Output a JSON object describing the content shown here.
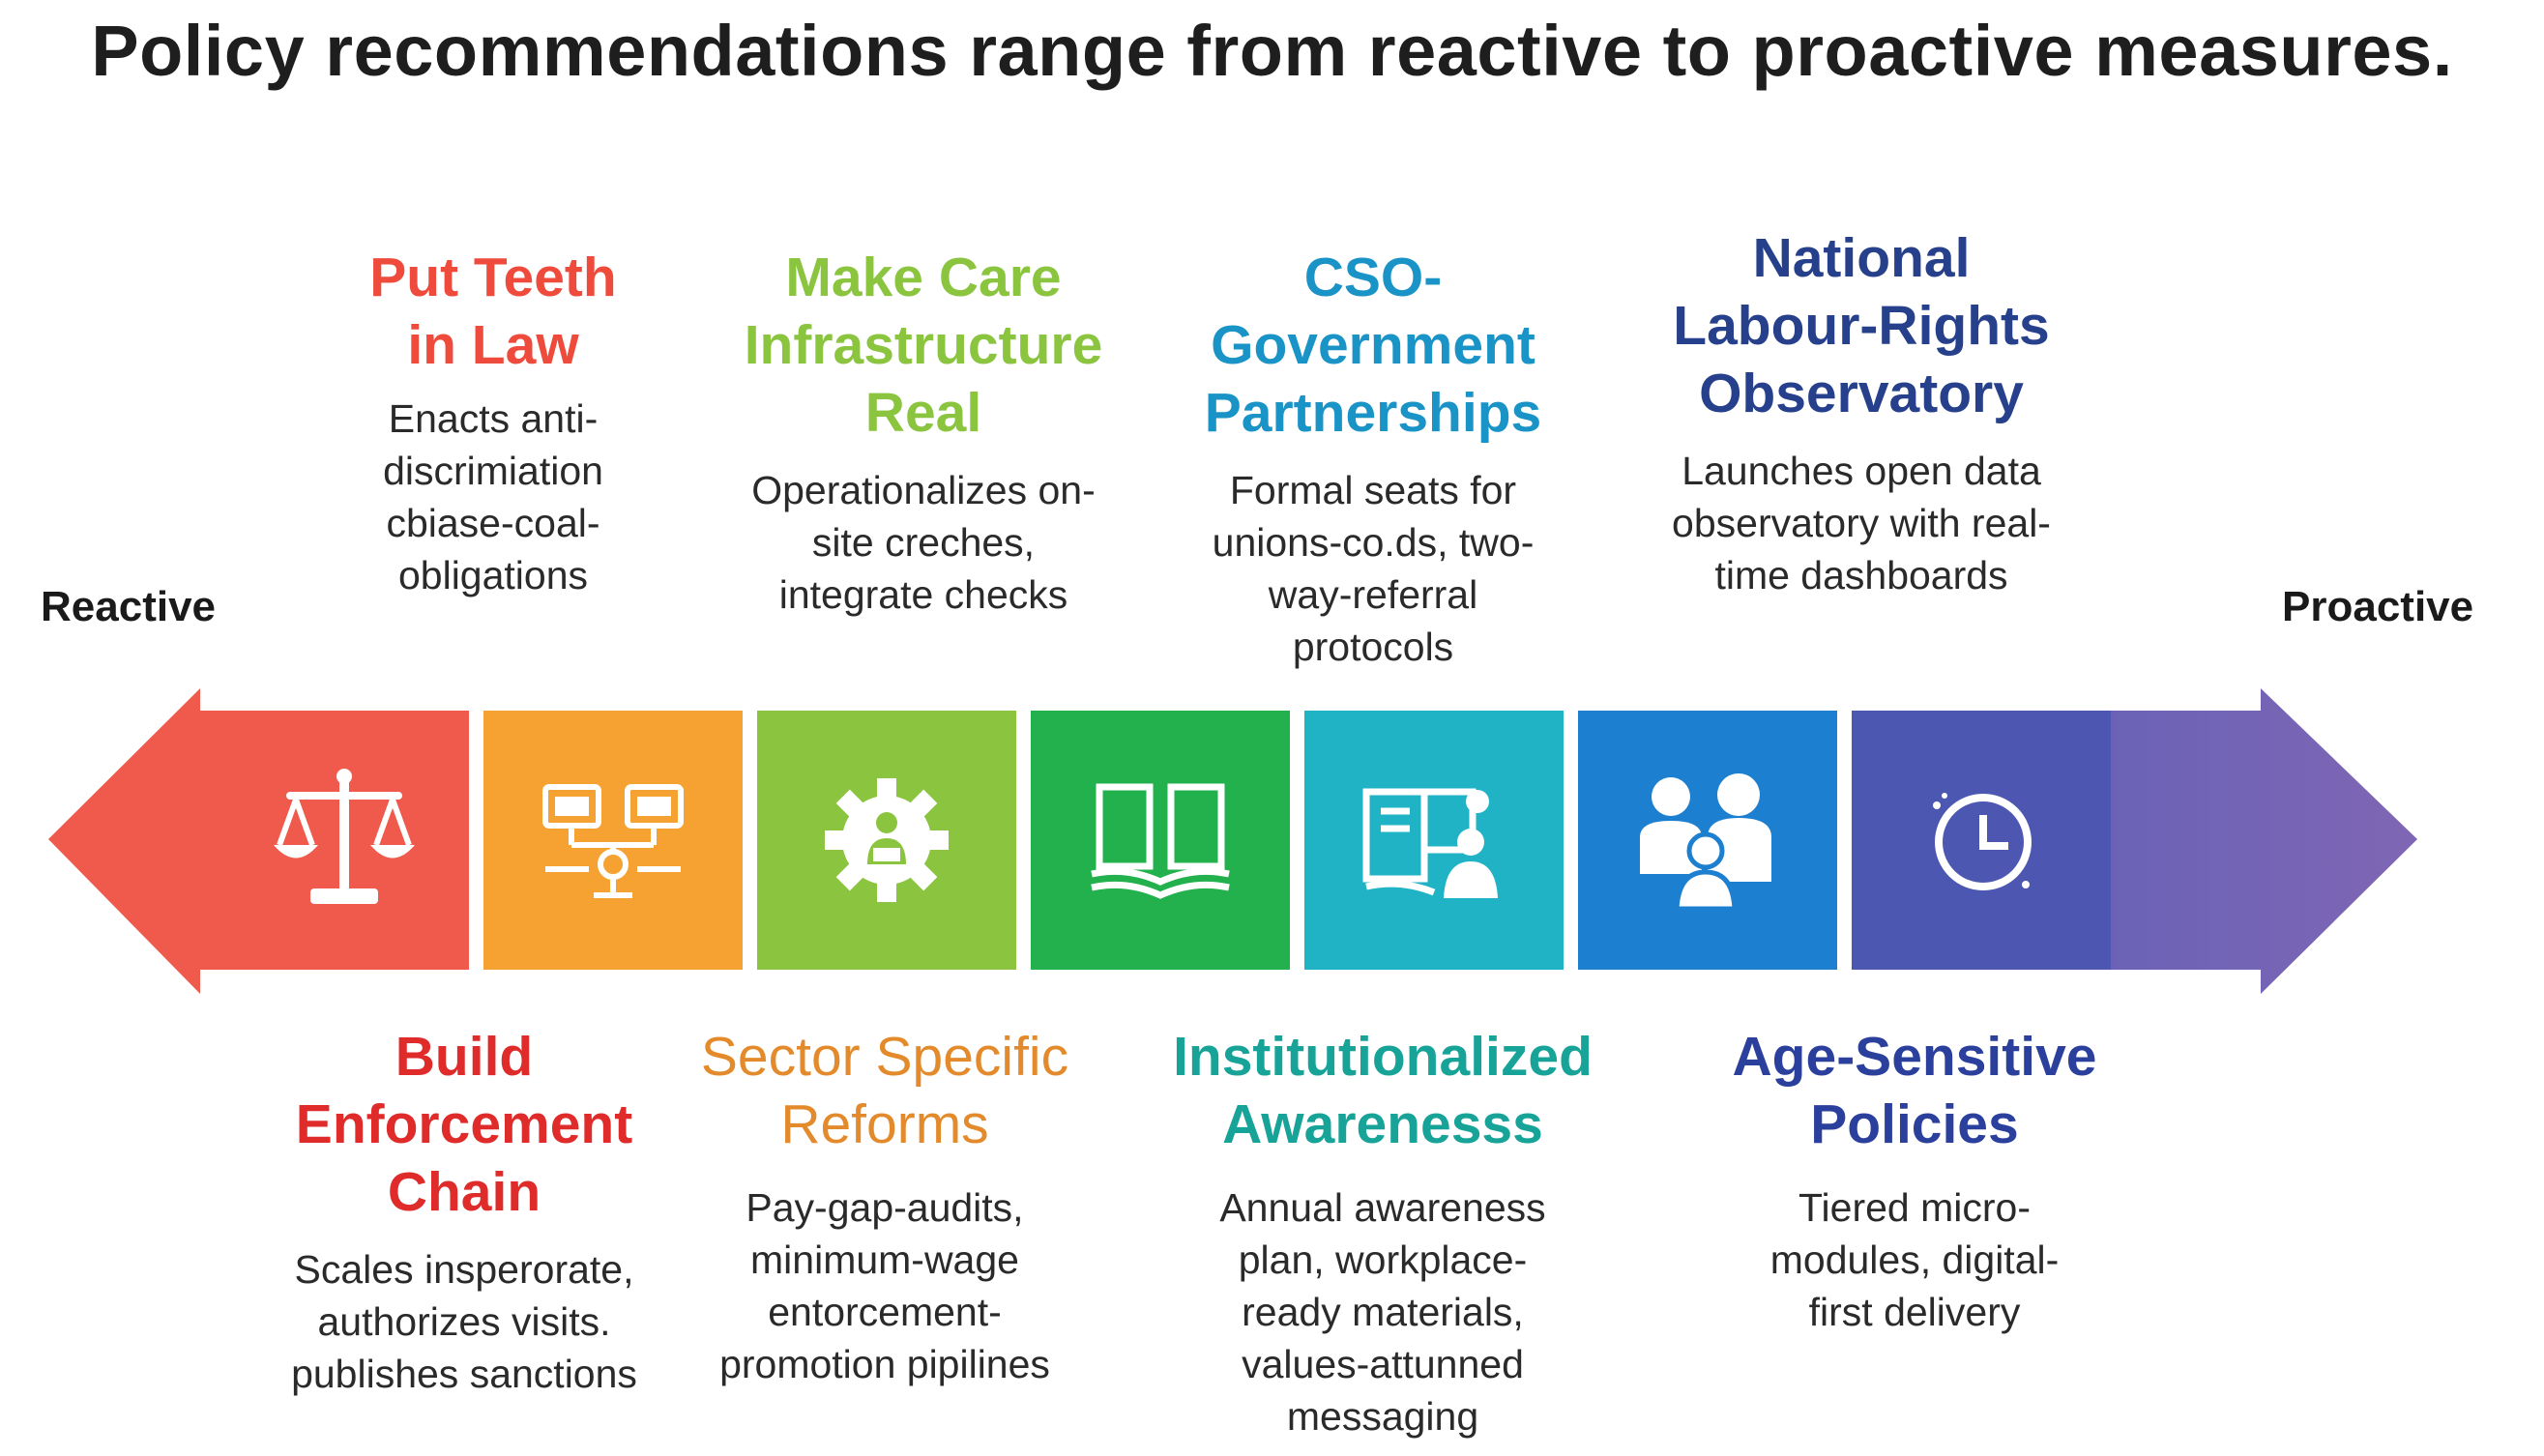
{
  "title": "Policy recommendations range from reactive to proactive measures.",
  "left_label": "Reactive",
  "right_label": "Proactive",
  "colors": {
    "red": "#ef5a4c",
    "orange": "#f5a233",
    "lime": "#8bc53f",
    "green": "#22b14c",
    "teal": "#1fb3c5",
    "blue": "#1c7fcf",
    "indigo": "#4a57b0",
    "purple": "#7466b4"
  },
  "top_items": [
    {
      "heading": "Put Teeth in Law",
      "description": "Enacts anti-discrimiation cbiase-coal-obligations",
      "color": "#ef4b3c"
    },
    {
      "heading": "Make Care Infrastructure Real",
      "description": "Operationalizes on-site creches, integrate checks",
      "color": "#8bc53f"
    },
    {
      "heading": "CSO-Government Partnerships",
      "description": "Formal seats for unions-co.ds, two-way-referral protocols",
      "color": "#1a93c7"
    },
    {
      "heading": "National Labour-Rights Observatory",
      "description": "Launches open data observatory with real-time dashboards",
      "color": "#27408b"
    }
  ],
  "bottom_items": [
    {
      "heading": "Build Enforcement Chain",
      "description": "Scales insperorate, authorizes visits. publishes sanctions",
      "color": "#e02b2b"
    },
    {
      "heading": "Sector Specific Reforms",
      "description": "Pay-gap-audits, minimum-wage entorcement-promotion pipilines",
      "color": "#e38b2c"
    },
    {
      "heading": "Institutionalized Awarenesss",
      "description": "Annual awareness plan, workplace-ready materials, values-attunned messaging",
      "color": "#17a398"
    },
    {
      "heading": "Age-Sensitive Policies",
      "description": "Tiered micro-modules, digital-first delivery",
      "color": "#2b3f9c"
    }
  ],
  "icons": [
    "scales-icon",
    "network-icon",
    "gear-person-icon",
    "book-icon",
    "reading-person-icon",
    "family-icon",
    "clock-icon"
  ]
}
